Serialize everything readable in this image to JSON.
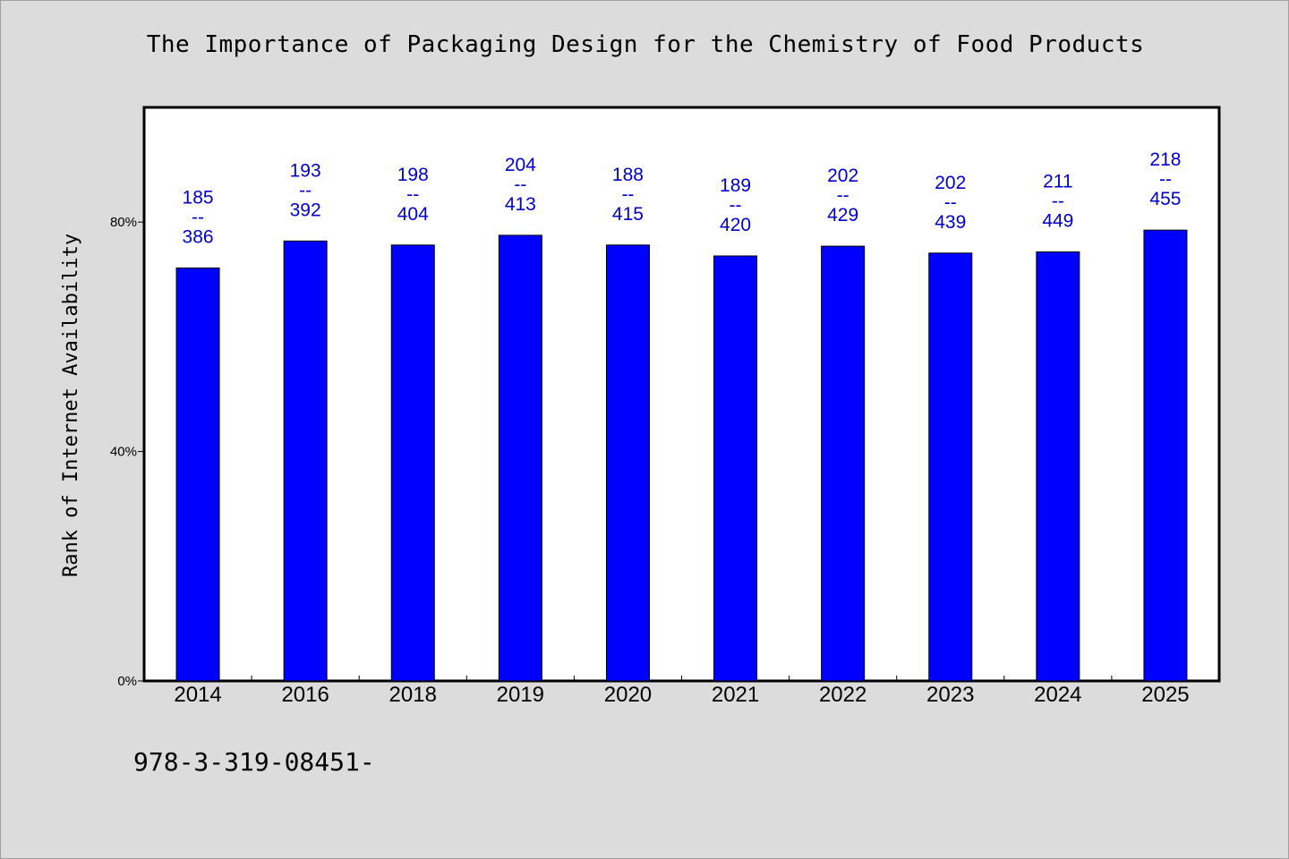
{
  "chart_data": {
    "type": "bar",
    "title": "The Importance of Packaging Design for the Chemistry of Food Products",
    "xlabel": "",
    "ylabel": "Rank of Internet Availability",
    "categories": [
      "2014",
      "2016",
      "2018",
      "2019",
      "2020",
      "2021",
      "2022",
      "2023",
      "2024",
      "2025"
    ],
    "values": [
      72,
      76.7,
      76,
      77.7,
      76,
      74.1,
      75.8,
      74.6,
      74.8,
      78.6
    ],
    "data_labels": [
      "185\n--\n386",
      "193\n--\n392",
      "198\n--\n404",
      "204\n--\n413",
      "188\n--\n415",
      "189\n--\n420",
      "202\n--\n429",
      "202\n--\n439",
      "211\n--\n449",
      "218\n--\n455"
    ],
    "y_ticks": [
      0,
      40,
      80
    ],
    "y_tick_labels": [
      "0%",
      "40%",
      "80%"
    ],
    "ylim": [
      0,
      100
    ],
    "grid": false,
    "legend": "none",
    "bar_color": "#0000ff",
    "label_color": "#0000cc"
  },
  "footer_text": "978-3-319-08451-"
}
